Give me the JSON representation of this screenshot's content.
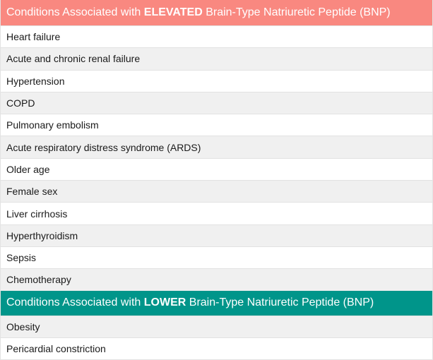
{
  "elevated": {
    "title_prefix": "Conditions Associated with ",
    "title_emphasis": "ELEVATED",
    "title_suffix": " Brain-Type Natriuretic Peptide (BNP)",
    "header_color": "#f98880",
    "items": [
      "Heart failure",
      "Acute and chronic renal failure",
      "Hypertension",
      "COPD",
      "Pulmonary embolism",
      "Acute respiratory distress syndrome (ARDS)",
      "Older age",
      "Female sex",
      "Liver cirrhosis",
      "Hyperthyroidism",
      "Sepsis",
      "Chemotherapy"
    ]
  },
  "lower": {
    "title_prefix": "Conditions Associated with ",
    "title_emphasis": "LOWER",
    "title_suffix": " Brain-Type Natriuretic Peptide (BNP)",
    "header_color": "#00958a",
    "items": [
      "Obesity",
      "Pericardial constriction"
    ]
  }
}
